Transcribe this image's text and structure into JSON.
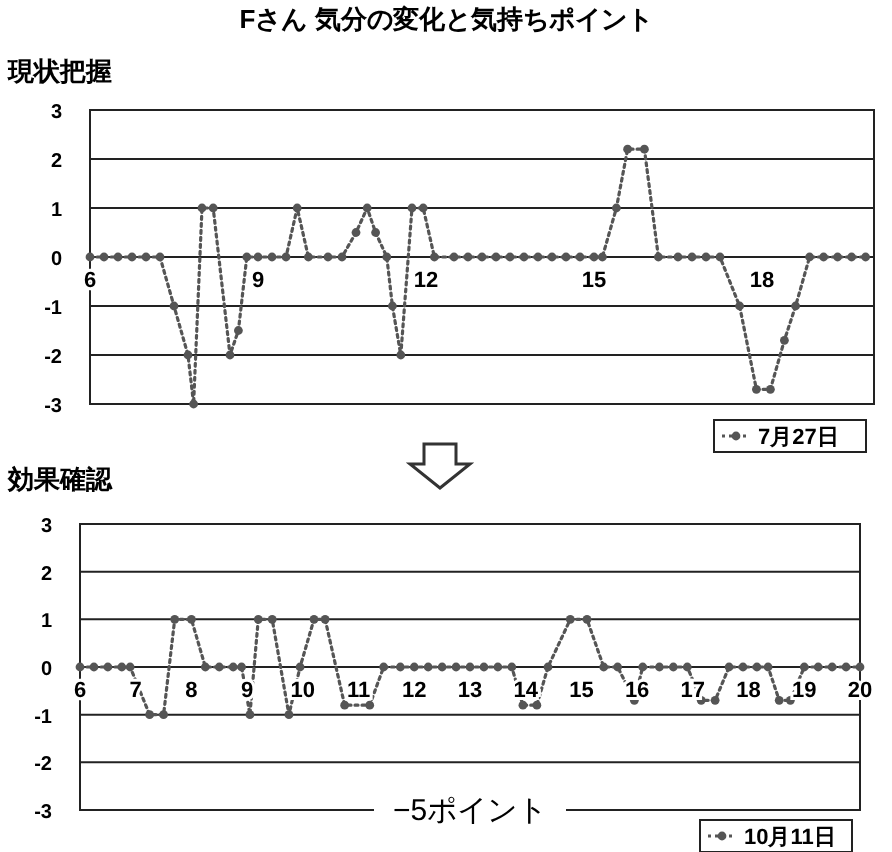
{
  "chart_data": [
    {
      "type": "line",
      "title": "Fさん 気分の変化と気持ちポイント",
      "subtitle": "現状把握",
      "xlim": [
        6,
        20
      ],
      "xticks": [
        6,
        9,
        12,
        15,
        18
      ],
      "ylim": [
        -3,
        3
      ],
      "yticks": [
        -3,
        -2,
        -1,
        0,
        1,
        2,
        3
      ],
      "grid": "y",
      "legend": "bottom right",
      "marker": "circle",
      "line_style": "dotted",
      "series": [
        {
          "name": "7月27日",
          "color": "#555555",
          "x": [
            6,
            6.25,
            6.5,
            6.75,
            7,
            7.25,
            7.5,
            7.75,
            7.85,
            8,
            8.2,
            8.5,
            8.65,
            8.8,
            9,
            9.25,
            9.5,
            9.7,
            9.9,
            10.25,
            10.5,
            10.75,
            10.95,
            11.1,
            11.3,
            11.4,
            11.55,
            11.75,
            11.95,
            12.15,
            12.5,
            12.75,
            13,
            13.25,
            13.5,
            13.75,
            14,
            14.25,
            14.5,
            14.75,
            15,
            15.15,
            15.4,
            15.6,
            15.9,
            16.15,
            16.5,
            16.75,
            17,
            17.25,
            17.6,
            17.9,
            18.15,
            18.4,
            18.6,
            18.85,
            19.1,
            19.35,
            19.6,
            19.85
          ],
          "values": [
            0,
            0,
            0,
            0,
            0,
            0,
            -1,
            -2,
            -3,
            1,
            1,
            -2,
            -1.5,
            0,
            0,
            0,
            0,
            1,
            0,
            0,
            0,
            0.5,
            1,
            0.5,
            0,
            -1,
            -2,
            1,
            1,
            0,
            0,
            0,
            0,
            0,
            0,
            0,
            0,
            0,
            0,
            0,
            0,
            0,
            1,
            2.2,
            2.2,
            0,
            0,
            0,
            0,
            0,
            -1,
            -2.7,
            -2.7,
            -1.7,
            -1,
            0,
            0,
            0,
            0,
            0
          ]
        }
      ]
    },
    {
      "type": "line",
      "title": "効果確認",
      "xlim": [
        6,
        20
      ],
      "xticks": [
        6,
        7,
        8,
        9,
        10,
        11,
        12,
        13,
        14,
        15,
        16,
        17,
        18,
        19,
        20
      ],
      "ylim": [
        -3,
        3
      ],
      "yticks": [
        -3,
        -2,
        -1,
        0,
        1,
        2,
        3
      ],
      "grid": "y",
      "legend": "bottom right",
      "marker": "circle",
      "line_style": "dotted",
      "annotations": [
        "−5ポイント"
      ],
      "series": [
        {
          "name": "10月11日",
          "color": "#555555",
          "x": [
            6,
            6.25,
            6.5,
            6.75,
            6.9,
            7.25,
            7.5,
            7.7,
            8,
            8.25,
            8.5,
            8.75,
            8.9,
            9.05,
            9.2,
            9.45,
            9.75,
            9.95,
            10.2,
            10.4,
            10.75,
            11.2,
            11.45,
            11.75,
            12,
            12.25,
            12.5,
            12.75,
            13,
            13.25,
            13.5,
            13.75,
            13.95,
            14.2,
            14.4,
            14.8,
            15.1,
            15.4,
            15.65,
            15.95,
            16.1,
            16.4,
            16.65,
            16.9,
            17.15,
            17.4,
            17.65,
            17.9,
            18.15,
            18.35,
            18.55,
            18.75,
            19,
            19.25,
            19.5,
            19.75,
            20
          ],
          "values": [
            0,
            0,
            0,
            0,
            0,
            -1,
            -1,
            1,
            1,
            0,
            0,
            0,
            0,
            -1,
            1,
            1,
            -1,
            0,
            1,
            1,
            -0.8,
            -0.8,
            0,
            0,
            0,
            0,
            0,
            0,
            0,
            0,
            0,
            0,
            -0.8,
            -0.8,
            0,
            1,
            1,
            0,
            0,
            -0.7,
            0,
            0,
            0,
            0,
            -0.7,
            -0.7,
            0,
            0,
            0,
            0,
            -0.7,
            -0.7,
            0,
            0,
            0,
            0,
            0
          ]
        }
      ]
    }
  ]
}
